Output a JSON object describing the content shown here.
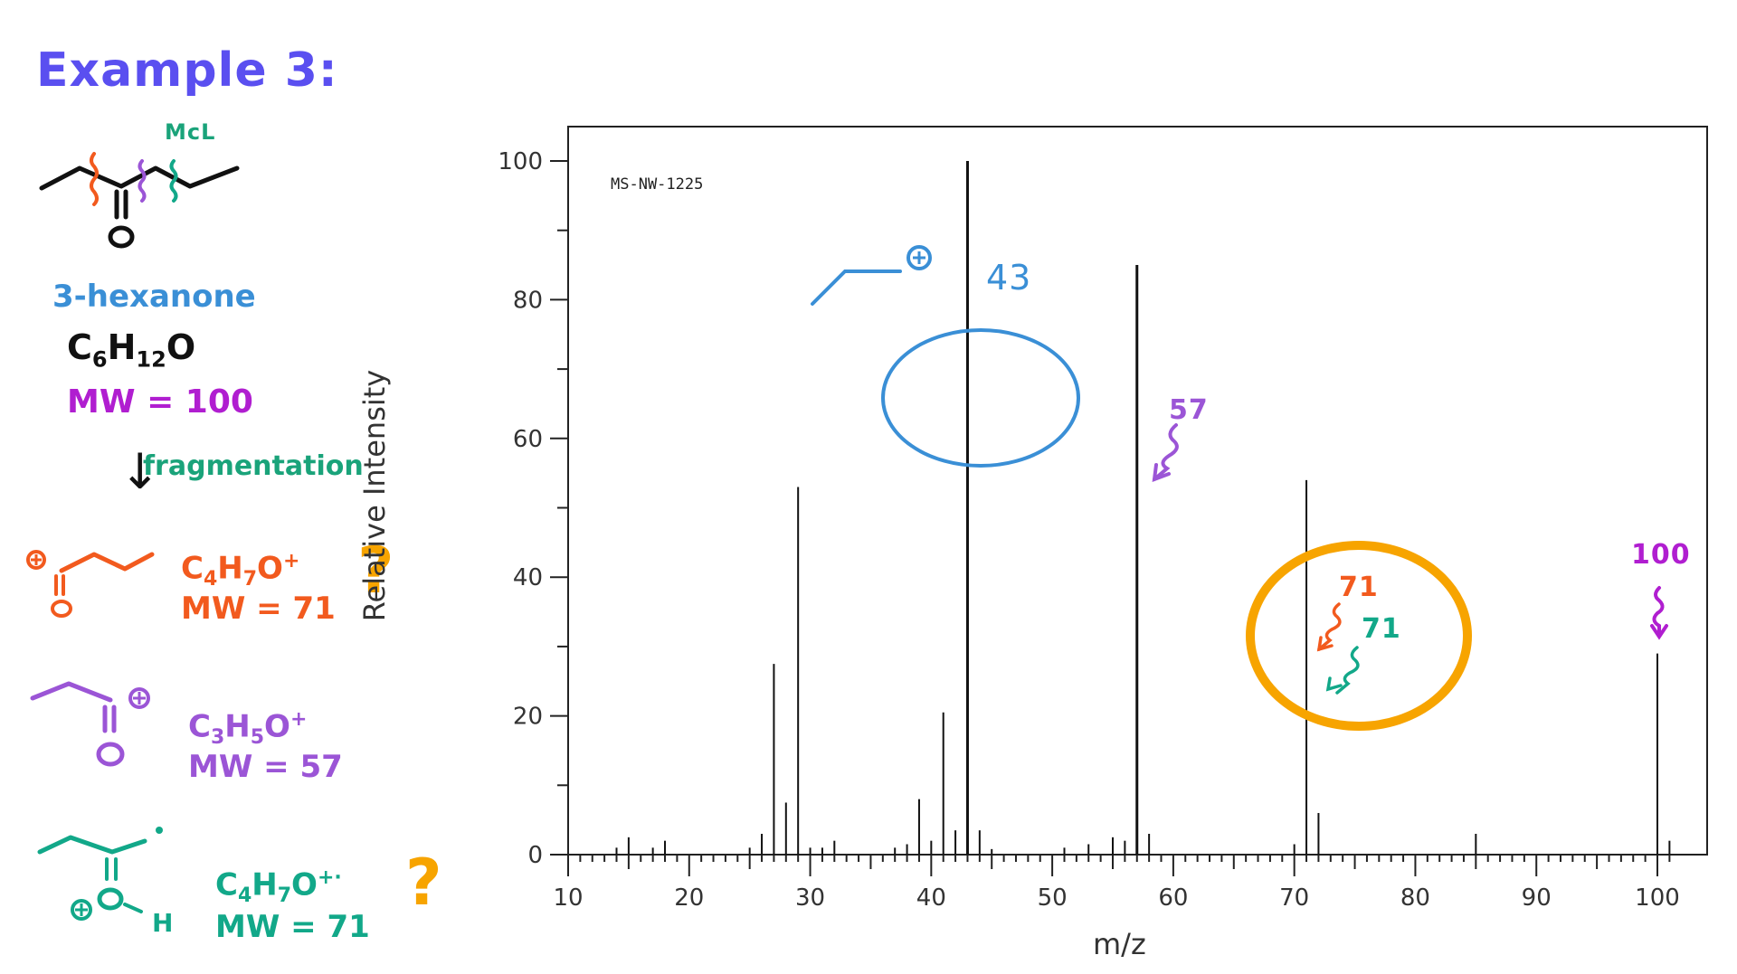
{
  "title": "Example 3:",
  "molecule": {
    "cleavage_label": "McL",
    "name": "3-hexanone",
    "formula": {
      "C": "C",
      "c_count": "6",
      "H": "H",
      "h_count": "12",
      "O": "O"
    },
    "mw_text": "MW = 100",
    "fragmentation_label": "fragmentation",
    "arrow": "↓"
  },
  "fragments": [
    {
      "formula_main": "C",
      "c": "4",
      "h_sym": "H",
      "h": "7",
      "o": "O",
      "charge": "+",
      "mw_text": "MW = 71",
      "color": "#f25a1e",
      "has_question": true
    },
    {
      "formula_main": "C",
      "c": "3",
      "h_sym": "H",
      "h": "5",
      "o": "O",
      "charge": "+",
      "mw_text": "MW = 57",
      "color": "#9b55d6",
      "has_question": false
    },
    {
      "formula_main": "C",
      "c": "4",
      "h_sym": "H",
      "h": "7",
      "o": "O",
      "charge": "+·",
      "mw_text": "MW = 71",
      "color": "#12a889",
      "has_question": true
    }
  ],
  "question_mark": "?",
  "colors": {
    "title": "#5a4ff0",
    "orange_cleave": "#f25a1e",
    "purple_cleave": "#9b55d6",
    "green_cleave": "#12a889",
    "blue_annot": "#3a8fd6",
    "magenta": "#b01ed0",
    "highlight_orange": "#f7a400"
  },
  "annotations": {
    "peak43": "43",
    "peak57": "57",
    "peak71_a": "71",
    "peak71_b": "71",
    "peak100": "100"
  },
  "chart_data": {
    "type": "bar",
    "title": "",
    "spectrum_id": "MS-NW-1225",
    "xlabel": "m/z",
    "ylabel": "Relative Intensity",
    "xlim": [
      10,
      102
    ],
    "ylim": [
      0,
      100
    ],
    "x_ticks": [
      10,
      20,
      30,
      40,
      50,
      60,
      70,
      80,
      90,
      100
    ],
    "y_ticks": [
      0,
      20,
      40,
      60,
      80,
      100
    ],
    "grid": false,
    "legend": null,
    "x": [
      14,
      15,
      17,
      18,
      25,
      26,
      27,
      28,
      29,
      30,
      31,
      32,
      37,
      38,
      39,
      40,
      41,
      42,
      43,
      44,
      45,
      51,
      53,
      55,
      56,
      57,
      58,
      70,
      71,
      72,
      85,
      100,
      101
    ],
    "values": [
      1,
      2.5,
      1,
      2,
      1,
      3,
      27.5,
      7.5,
      53,
      1,
      1,
      2,
      1,
      1.5,
      8,
      2,
      20.5,
      3.5,
      100,
      3.5,
      0.8,
      1,
      1.5,
      2.5,
      2,
      85,
      3,
      1.5,
      54,
      6,
      3,
      29,
      2
    ]
  }
}
